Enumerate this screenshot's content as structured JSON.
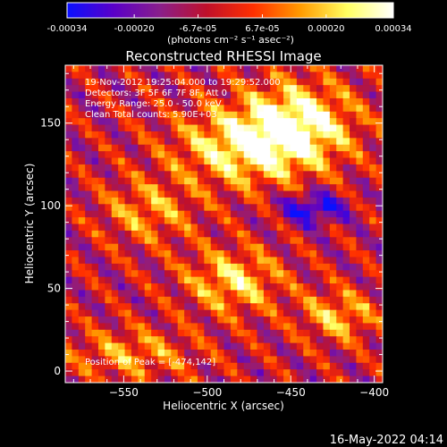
{
  "colorbar": {
    "tick_values": [
      -0.00034,
      -0.0002,
      -6.7e-05,
      6.7e-05,
      0.0002,
      0.00034
    ],
    "tick_labels": [
      "-0.00034",
      "-0.00020",
      "-6.7e-05",
      "6.7e-05",
      "0.00020",
      "0.00034"
    ],
    "units_label": "(photons cm⁻² s⁻¹ asec⁻²)",
    "range": [
      -0.00034,
      0.00034
    ],
    "stops": [
      "#0a10ff",
      "#5a00c8",
      "#8a1f8a",
      "#c0102a",
      "#ff3000",
      "#ff9a00",
      "#ffff60",
      "#ffffff"
    ]
  },
  "chart_data": {
    "type": "heatmap",
    "title": "Reconstructed RHESSI Image",
    "xlabel": "Heliocentric X (arcsec)",
    "ylabel": "Heliocentric Y (arcsec)",
    "xlim": [
      -585,
      -395
    ],
    "ylim": [
      -7,
      185
    ],
    "x_ticks": [
      -550,
      -500,
      -450,
      -400
    ],
    "x_tick_labels": [
      "−550",
      "−500",
      "−450",
      "−400"
    ],
    "y_ticks": [
      0,
      50,
      100,
      150
    ],
    "y_tick_labels": [
      "0",
      "50",
      "100",
      "150"
    ],
    "peak": {
      "x": -474,
      "y": 142
    },
    "info_lines": [
      "19-Nov-2012 19:25:04.000 to 19:29:52.000",
      "Detectors: 3F 5F 6F 7F 8F, Att 0",
      "Energy Range: 25.0 - 50.0 keV",
      "Clean    Total counts: 5.90E+03"
    ],
    "peak_label": "Position of Peak = [-474,142]"
  },
  "footer": {
    "timestamp": "16-May-2022 04:14"
  }
}
